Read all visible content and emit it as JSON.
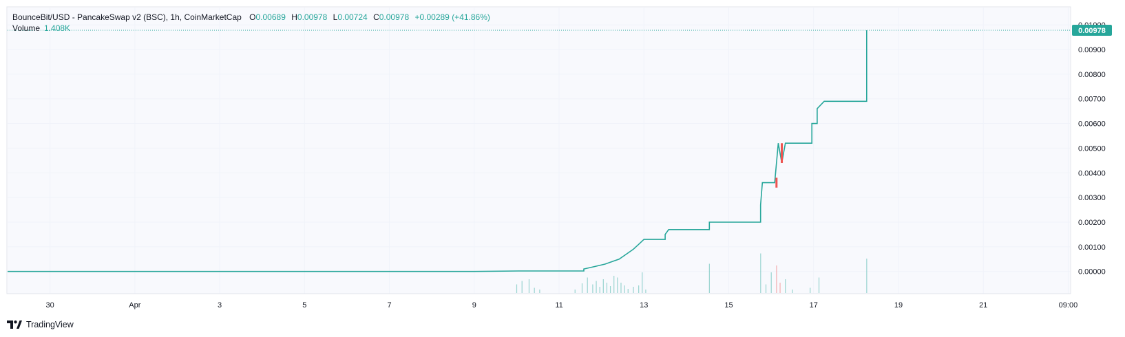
{
  "legend": {
    "symbol": "BounceBit/USD - PancakeSwap v2 (BSC), 1h, CoinMarketCap",
    "o_label": "O",
    "o": "0.00689",
    "h_label": "H",
    "h": "0.00978",
    "l_label": "L",
    "l": "0.00724",
    "c_label": "C",
    "c": "0.00978",
    "change": "+0.00289 (+41.86%)",
    "volume_label": "Volume",
    "volume": "1.408K"
  },
  "last_price_label": "0.00978",
  "brand": "TradingView",
  "colors": {
    "up": "#26a69a",
    "down": "#ef5350",
    "grid": "#f0f3fa",
    "axis_text": "#131722",
    "price_tag": "#26a69a"
  },
  "chart_data": {
    "type": "line",
    "title": "BounceBit/USD - PancakeSwap v2 (BSC), 1h, CoinMarketCap",
    "y_axis_position": "right",
    "ylim": [
      -0.0009,
      0.0107
    ],
    "y_ticks": [
      {
        "v": 0.0,
        "label": "0.00000"
      },
      {
        "v": 0.001,
        "label": "0.00100"
      },
      {
        "v": 0.002,
        "label": "0.00200"
      },
      {
        "v": 0.003,
        "label": "0.00300"
      },
      {
        "v": 0.004,
        "label": "0.00400"
      },
      {
        "v": 0.005,
        "label": "0.00500"
      },
      {
        "v": 0.006,
        "label": "0.00600"
      },
      {
        "v": 0.007,
        "label": "0.00700"
      },
      {
        "v": 0.008,
        "label": "0.00800"
      },
      {
        "v": 0.009,
        "label": "0.00900"
      },
      {
        "v": 0.01,
        "label": "0.01000"
      }
    ],
    "xlim": [
      "2024-03-29T00:00",
      "2024-04-23T01:00"
    ],
    "x_ticks": [
      {
        "t": "2024-03-30T00:00",
        "label": "30"
      },
      {
        "t": "2024-04-01T00:00",
        "label": "Apr"
      },
      {
        "t": "2024-04-03T00:00",
        "label": "3"
      },
      {
        "t": "2024-04-05T00:00",
        "label": "5"
      },
      {
        "t": "2024-04-07T00:00",
        "label": "7"
      },
      {
        "t": "2024-04-09T00:00",
        "label": "9"
      },
      {
        "t": "2024-04-11T00:00",
        "label": "11"
      },
      {
        "t": "2024-04-13T00:00",
        "label": "13"
      },
      {
        "t": "2024-04-15T00:00",
        "label": "15"
      },
      {
        "t": "2024-04-17T00:00",
        "label": "17"
      },
      {
        "t": "2024-04-19T00:00",
        "label": "19"
      },
      {
        "t": "2024-04-21T00:00",
        "label": "21"
      },
      {
        "t": "2024-04-23T00:00",
        "label": "09:00"
      }
    ],
    "price_series": {
      "name": "Close",
      "points": [
        [
          "2024-03-29T00:00",
          0.0
        ],
        [
          "2024-04-09T00:00",
          0.0
        ],
        [
          "2024-04-10T01:00",
          2e-05
        ],
        [
          "2024-04-11T14:00",
          2e-05
        ],
        [
          "2024-04-11T14:00",
          0.0001
        ],
        [
          "2024-04-11T20:00",
          0.0002
        ],
        [
          "2024-04-12T02:00",
          0.0003
        ],
        [
          "2024-04-12T06:00",
          0.0004
        ],
        [
          "2024-04-12T10:00",
          0.0005
        ],
        [
          "2024-04-12T14:00",
          0.0007
        ],
        [
          "2024-04-12T18:00",
          0.0009
        ],
        [
          "2024-04-12T21:00",
          0.0011
        ],
        [
          "2024-04-13T00:00",
          0.0013
        ],
        [
          "2024-04-13T12:00",
          0.0013
        ],
        [
          "2024-04-13T12:00",
          0.0015
        ],
        [
          "2024-04-13T14:00",
          0.0017
        ],
        [
          "2024-04-14T13:00",
          0.0017
        ],
        [
          "2024-04-14T13:00",
          0.002
        ],
        [
          "2024-04-15T18:00",
          0.002
        ],
        [
          "2024-04-15T18:00",
          0.0027
        ],
        [
          "2024-04-15T19:00",
          0.0036
        ],
        [
          "2024-04-16T02:00",
          0.0036
        ],
        [
          "2024-04-16T04:00",
          0.0052
        ],
        [
          "2024-04-16T06:00",
          0.0044
        ],
        [
          "2024-04-16T08:00",
          0.0052
        ],
        [
          "2024-04-16T23:00",
          0.0052
        ],
        [
          "2024-04-16T23:00",
          0.006
        ],
        [
          "2024-04-17T02:00",
          0.006
        ],
        [
          "2024-04-17T02:00",
          0.0066
        ],
        [
          "2024-04-17T06:00",
          0.0069
        ],
        [
          "2024-04-18T06:00",
          0.0069
        ],
        [
          "2024-04-18T06:00",
          0.00978
        ]
      ]
    },
    "down_candles": [
      {
        "t": "2024-04-16T03:00",
        "open": 0.0038,
        "close": 0.0034
      },
      {
        "t": "2024-04-16T06:00",
        "open": 0.0052,
        "close": 0.0044
      }
    ],
    "volume_series": {
      "name": "Volume",
      "bars": [
        [
          "2024-04-10T00:00",
          0.25
        ],
        [
          "2024-04-10T03:00",
          0.35
        ],
        [
          "2024-04-10T07:00",
          0.4
        ],
        [
          "2024-04-10T10:00",
          0.15
        ],
        [
          "2024-04-10T13:00",
          0.1
        ],
        [
          "2024-04-11T09:00",
          0.1
        ],
        [
          "2024-04-11T13:00",
          0.28
        ],
        [
          "2024-04-11T16:00",
          0.45
        ],
        [
          "2024-04-11T19:00",
          0.25
        ],
        [
          "2024-04-11T21:00",
          0.35
        ],
        [
          "2024-04-11T23:00",
          0.18
        ],
        [
          "2024-04-12T01:00",
          0.4
        ],
        [
          "2024-04-12T03:00",
          0.3
        ],
        [
          "2024-04-12T05:00",
          0.2
        ],
        [
          "2024-04-12T07:00",
          0.5
        ],
        [
          "2024-04-12T09:00",
          0.45
        ],
        [
          "2024-04-12T11:00",
          0.3
        ],
        [
          "2024-04-12T13:00",
          0.22
        ],
        [
          "2024-04-12T15:00",
          0.12
        ],
        [
          "2024-04-12T18:00",
          0.18
        ],
        [
          "2024-04-12T21:00",
          0.22
        ],
        [
          "2024-04-12T23:00",
          0.6
        ],
        [
          "2024-04-13T01:00",
          0.1
        ],
        [
          "2024-04-14T13:00",
          0.85
        ],
        [
          "2024-04-15T18:00",
          1.15
        ],
        [
          "2024-04-15T21:00",
          0.25
        ],
        [
          "2024-04-16T00:00",
          0.6
        ],
        [
          "2024-04-16T03:00",
          0.8
        ],
        [
          "2024-04-16T05:00",
          0.3
        ],
        [
          "2024-04-16T08:00",
          0.4
        ],
        [
          "2024-04-16T12:00",
          0.1
        ],
        [
          "2024-04-16T22:00",
          0.15
        ],
        [
          "2024-04-17T03:00",
          0.45
        ],
        [
          "2024-04-18T06:00",
          1.0
        ]
      ],
      "down_bars": [
        "2024-04-16T03:00",
        "2024-04-16T05:00"
      ]
    },
    "last_price": 0.00978
  }
}
